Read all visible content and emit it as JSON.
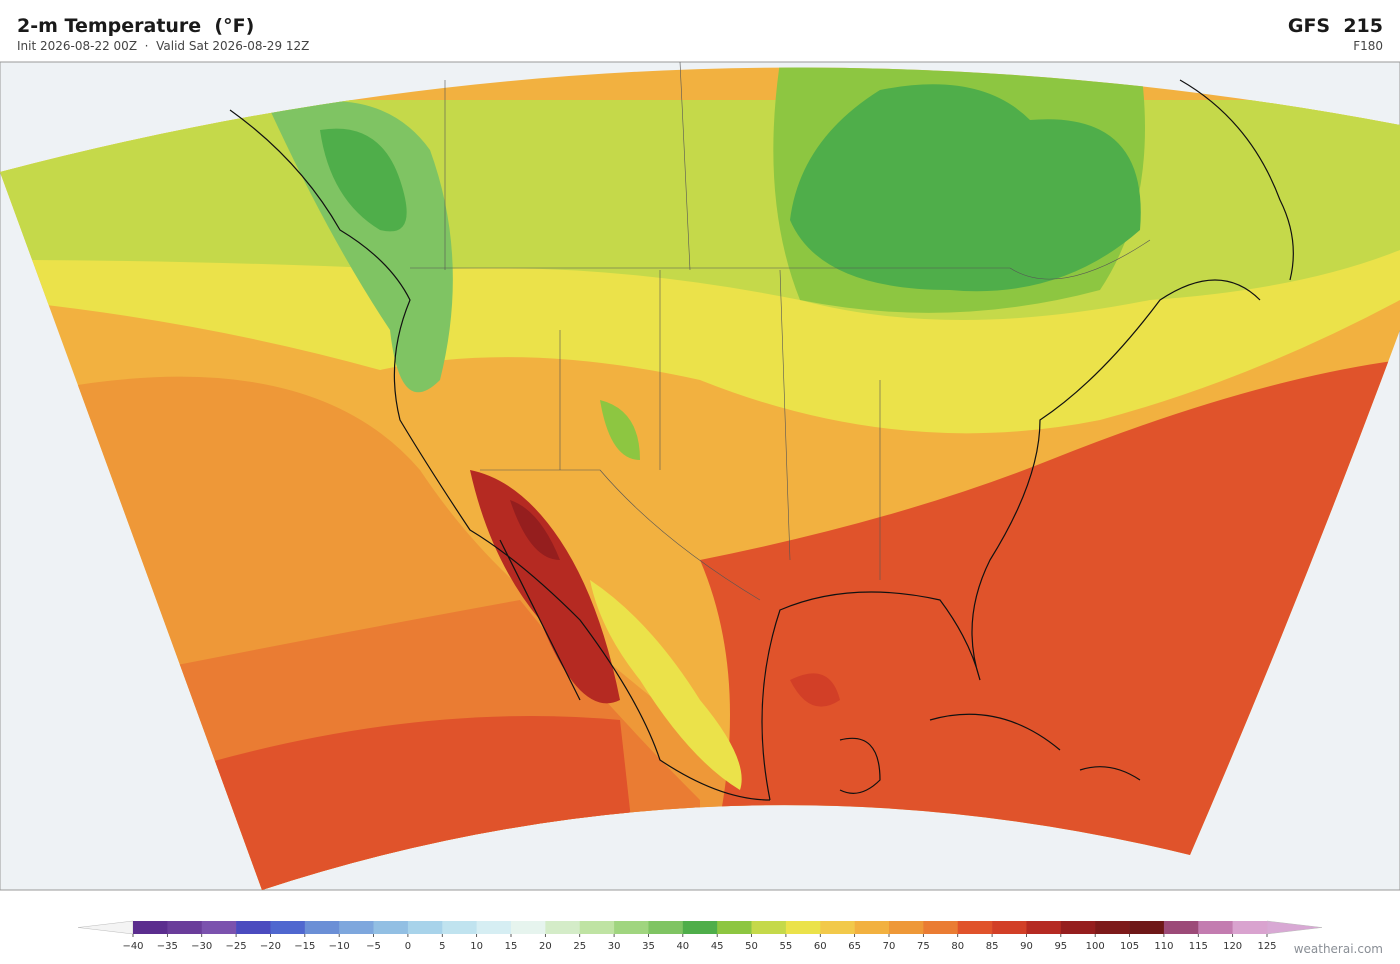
{
  "header": {
    "title": "2-m Temperature  (°F)",
    "subtitle": "Init 2026-08-22 00Z  ·  Valid Sat 2026-08-29 12Z",
    "model": "GFS  215",
    "forecast_hour": "F180"
  },
  "colorbar": {
    "ticks": [
      {
        "value": -40,
        "label": "−40"
      },
      {
        "value": -35,
        "label": "−35"
      },
      {
        "value": -30,
        "label": "−30"
      },
      {
        "value": -25,
        "label": "−25"
      },
      {
        "value": -20,
        "label": "−20"
      },
      {
        "value": -15,
        "label": "−15"
      },
      {
        "value": -10,
        "label": "−10"
      },
      {
        "value": -5,
        "label": "−5"
      },
      0,
      5,
      10,
      15,
      20,
      25,
      30,
      35,
      40,
      45,
      50,
      55,
      60,
      65,
      70,
      75,
      80,
      85,
      90,
      95,
      100,
      105,
      110,
      115,
      120,
      125
    ],
    "colors": [
      "#5b2d8e",
      "#6a3d9a",
      "#7b52ae",
      "#4b4bbf",
      "#4f67cf",
      "#6b8fd6",
      "#7ea7dd",
      "#92bfe3",
      "#a8d3ea",
      "#c0e3ef",
      "#d6eef3",
      "#e6f4ee",
      "#d4ecc8",
      "#bfe3a3",
      "#a0d57f",
      "#7fc463",
      "#4fae4a",
      "#8dc641",
      "#c5d94a",
      "#ebe24a",
      "#f2c94a",
      "#f2b140",
      "#ee9838",
      "#ea7c33",
      "#e0532b",
      "#d23f27",
      "#b52a22",
      "#951e1e",
      "#7d1a1a",
      "#6e1818",
      "#9c4a78",
      "#c37cb0",
      "#d9a3cf"
    ],
    "under_color": "#f4f4f4",
    "over_color": "#d8a8d4"
  },
  "attribution": "weatherai.com"
}
